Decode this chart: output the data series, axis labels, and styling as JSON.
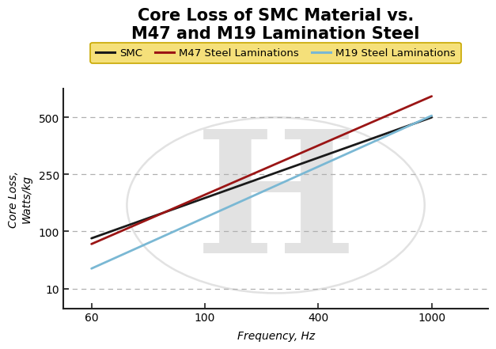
{
  "title": "Core Loss of SMC Material vs.\nM47 and M19 Lamination Steel",
  "xlabel": "Frequency, Hz",
  "ylabel": "Core Loss,\nWatts/kg",
  "x_tick_positions": [
    0,
    1,
    2,
    3
  ],
  "x_tick_labels": [
    "60",
    "100",
    "400",
    "1000"
  ],
  "y_tick_positions": [
    0,
    1,
    2,
    3
  ],
  "y_tick_labels": [
    "10",
    "100",
    "250",
    "500"
  ],
  "x_lim": [
    -0.25,
    3.5
  ],
  "y_lim": [
    -0.35,
    3.5
  ],
  "lines": {
    "SMC": {
      "color": "#1a1a1a",
      "x": [
        0,
        3
      ],
      "y": [
        0.88,
        3.0
      ]
    },
    "M47 Steel Laminations": {
      "color": "#9b1515",
      "x": [
        0,
        3
      ],
      "y": [
        0.78,
        3.37
      ]
    },
    "M19 Steel Laminations": {
      "color": "#7ab8d4",
      "x": [
        0,
        3
      ],
      "y": [
        0.35,
        3.03
      ]
    }
  },
  "legend_bg_color": "#f5e07a",
  "legend_edge_color": "#c8a800",
  "grid_color": "#b0b0b0",
  "bg_color": "#ffffff",
  "watermark_text": "H",
  "watermark_color": "#e2e2e2",
  "title_fontsize": 15,
  "label_fontsize": 10,
  "tick_fontsize": 10,
  "legend_fontsize": 9.5,
  "line_width": 2.0
}
